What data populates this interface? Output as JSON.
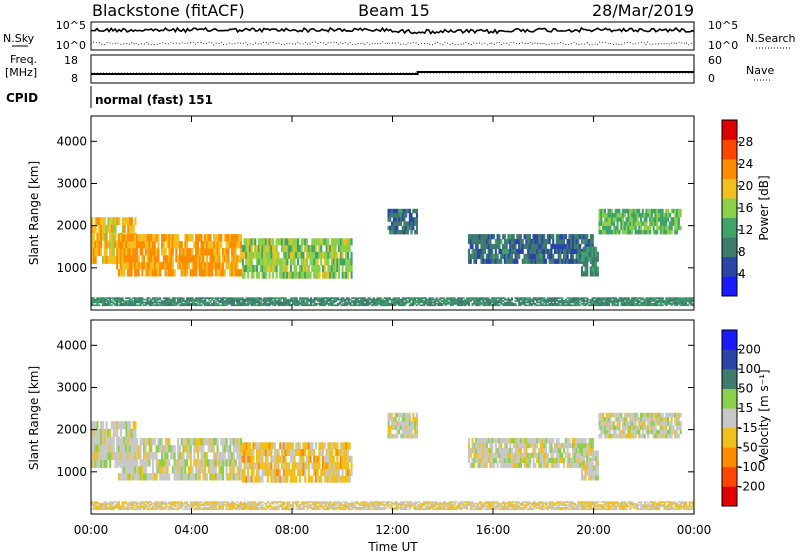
{
  "header": {
    "station": "Blackstone (fitACF)",
    "beam": "Beam 15",
    "date": "28/Mar/2019"
  },
  "sky_panel": {
    "left_label": "N.Sky",
    "right_label": "N.Search",
    "left_ticks": [
      "10^5",
      "10^0"
    ],
    "right_ticks": [
      "10^5",
      "10^0"
    ]
  },
  "freq_panel": {
    "left_label_line1": "Freq.",
    "left_label_line2": "[MHz]",
    "right_label": "Nave",
    "left_ticks": [
      "18",
      "8"
    ],
    "right_ticks": [
      "60",
      "0"
    ]
  },
  "cpid": {
    "label": "CPID",
    "text": "normal (fast) 151"
  },
  "colors": {
    "power": [
      "#1a1aff",
      "#2a45a8",
      "#3f7a6e",
      "#3fa36a",
      "#8bd04a",
      "#f0c020",
      "#ff8c00",
      "#ff4500",
      "#e00000"
    ],
    "velocity": [
      "#e00000",
      "#ff4500",
      "#ff8c00",
      "#f0c020",
      "#c8c8c8",
      "#8bd04a",
      "#3f7a6e",
      "#2a45a8",
      "#1a1aff"
    ]
  },
  "chart_data": [
    {
      "type": "heatmap",
      "name": "power",
      "xlabel": "Time UT",
      "ylabel": "Slant Range [km]",
      "xlim": [
        0,
        24
      ],
      "ylim": [
        0,
        4600
      ],
      "x_ticks": [
        "00:00",
        "04:00",
        "08:00",
        "12:00",
        "16:00",
        "20:00",
        "00:00"
      ],
      "y_ticks": [
        "1000",
        "2000",
        "3000",
        "4000"
      ],
      "colorbar": {
        "label": "Power [dB]",
        "ticks": [
          "4",
          "8",
          "12",
          "16",
          "20",
          "24",
          "28"
        ],
        "range": [
          0,
          32
        ]
      },
      "echo_regions": [
        {
          "t": [
            0.0,
            1.8
          ],
          "range_km": [
            1100,
            2200
          ],
          "value": 20
        },
        {
          "t": [
            1.0,
            6.0
          ],
          "range_km": [
            800,
            1800
          ],
          "value": 22
        },
        {
          "t": [
            6.0,
            10.4
          ],
          "range_km": [
            750,
            1700
          ],
          "value": 16
        },
        {
          "t": [
            11.8,
            13.0
          ],
          "range_km": [
            1800,
            2400
          ],
          "value": 8
        },
        {
          "t": [
            15.0,
            20.0
          ],
          "range_km": [
            1100,
            1800
          ],
          "value": 8
        },
        {
          "t": [
            19.5,
            20.2
          ],
          "range_km": [
            800,
            1500
          ],
          "value": 10
        },
        {
          "t": [
            20.2,
            23.5
          ],
          "range_km": [
            1800,
            2400
          ],
          "value": 14
        },
        {
          "t": [
            0.0,
            24.0
          ],
          "range_km": [
            100,
            300
          ],
          "value": 10
        }
      ]
    },
    {
      "type": "heatmap",
      "name": "velocity",
      "xlabel": "Time UT",
      "ylabel": "Slant Range [km]",
      "xlim": [
        0,
        24
      ],
      "ylim": [
        0,
        4600
      ],
      "x_ticks": [
        "00:00",
        "04:00",
        "08:00",
        "12:00",
        "16:00",
        "20:00",
        "00:00"
      ],
      "y_ticks": [
        "1000",
        "2000",
        "3000",
        "4000"
      ],
      "colorbar": {
        "label": "Velocity [m s⁻¹]",
        "ticks": [
          "200",
          "100",
          "50",
          "15",
          "-15",
          "-50",
          "-100",
          "-200"
        ]
      },
      "echo_regions": [
        {
          "t": [
            0.0,
            1.8
          ],
          "range_km": [
            1100,
            2200
          ],
          "value": 0
        },
        {
          "t": [
            1.0,
            6.0
          ],
          "range_km": [
            800,
            1800
          ],
          "value": 0
        },
        {
          "t": [
            6.0,
            10.4
          ],
          "range_km": [
            750,
            1700
          ],
          "value": -50
        },
        {
          "t": [
            11.8,
            13.0
          ],
          "range_km": [
            1800,
            2400
          ],
          "value": 0
        },
        {
          "t": [
            15.0,
            20.0
          ],
          "range_km": [
            1100,
            1800
          ],
          "value": 0
        },
        {
          "t": [
            19.5,
            20.2
          ],
          "range_km": [
            800,
            1500
          ],
          "value": 0
        },
        {
          "t": [
            20.2,
            23.5
          ],
          "range_km": [
            1800,
            2400
          ],
          "value": 0
        },
        {
          "t": [
            0.0,
            24.0
          ],
          "range_km": [
            100,
            300
          ],
          "value": -30
        }
      ]
    }
  ]
}
